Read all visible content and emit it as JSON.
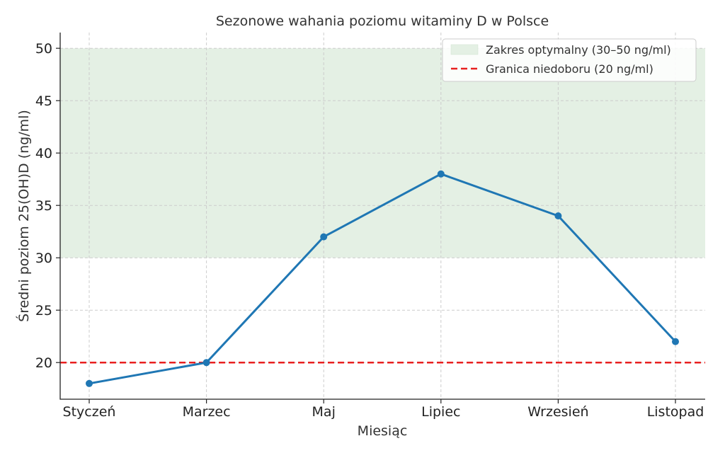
{
  "chart_data": {
    "type": "line",
    "title": "Sezonowe wahania poziomu witaminy D w Polsce",
    "xlabel": "Miesiąc",
    "ylabel": "Średni poziom 25(OH)D (ng/ml)",
    "categories": [
      "Styczeń",
      "Marzec",
      "Maj",
      "Lipiec",
      "Wrzesień",
      "Listopad"
    ],
    "series": [
      {
        "name": "",
        "values": [
          18,
          20,
          32,
          38,
          34,
          22
        ],
        "color": "#1f77b4"
      }
    ],
    "ylim": [
      16.5,
      51.5
    ],
    "yticks": [
      20,
      25,
      30,
      35,
      40,
      45,
      50
    ],
    "grid": true,
    "legend_position": "top-right",
    "band": {
      "label": "Zakres optymalny (30–50 ng/ml)",
      "from": 30,
      "to": 50,
      "color": "#e4f0e4"
    },
    "hline": {
      "label": "Granica niedoboru (20 ng/ml)",
      "value": 20,
      "color": "#e82020"
    }
  }
}
